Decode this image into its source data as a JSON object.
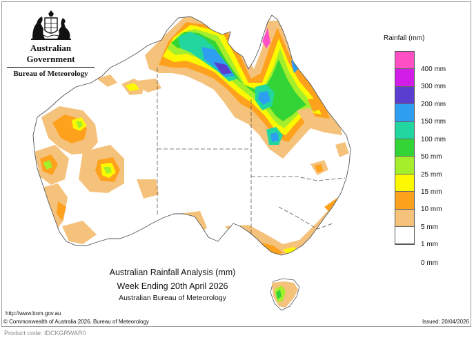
{
  "header": {
    "agency": "Australian Government",
    "bureau": "Bureau of Meteorology"
  },
  "map": {
    "title_line1": "Australian Rainfall Analysis (mm)",
    "title_line2": "Week Ending 20th April 2026",
    "title_line3": "Australian Bureau of Meteorology"
  },
  "legend": {
    "title": "Rainfall (mm)",
    "items": [
      {
        "label": "400 mm",
        "color": "#ff4fc4"
      },
      {
        "label": "300 mm",
        "color": "#d21ce8"
      },
      {
        "label": "200 mm",
        "color": "#5a3ed0"
      },
      {
        "label": "150 mm",
        "color": "#2e9ef0"
      },
      {
        "label": "100 mm",
        "color": "#22d6a0"
      },
      {
        "label": "50 mm",
        "color": "#33d436"
      },
      {
        "label": "25 mm",
        "color": "#a4ee2c"
      },
      {
        "label": "15 mm",
        "color": "#fbf800"
      },
      {
        "label": "10 mm",
        "color": "#fea11c"
      },
      {
        "label": "5 mm",
        "color": "#f5c27c"
      },
      {
        "label": "1 mm",
        "color": "#ffffff"
      },
      {
        "label": "0 mm",
        "color": "#ffffff"
      }
    ]
  },
  "footer": {
    "url": "http://www.bom.gov.au",
    "copyright": "© Commonwealth of Australia 2026, Bureau of Meteorology",
    "issued": "Issued: 20/04/2026",
    "product_code": "Product code: IDCKGRWAR0"
  }
}
